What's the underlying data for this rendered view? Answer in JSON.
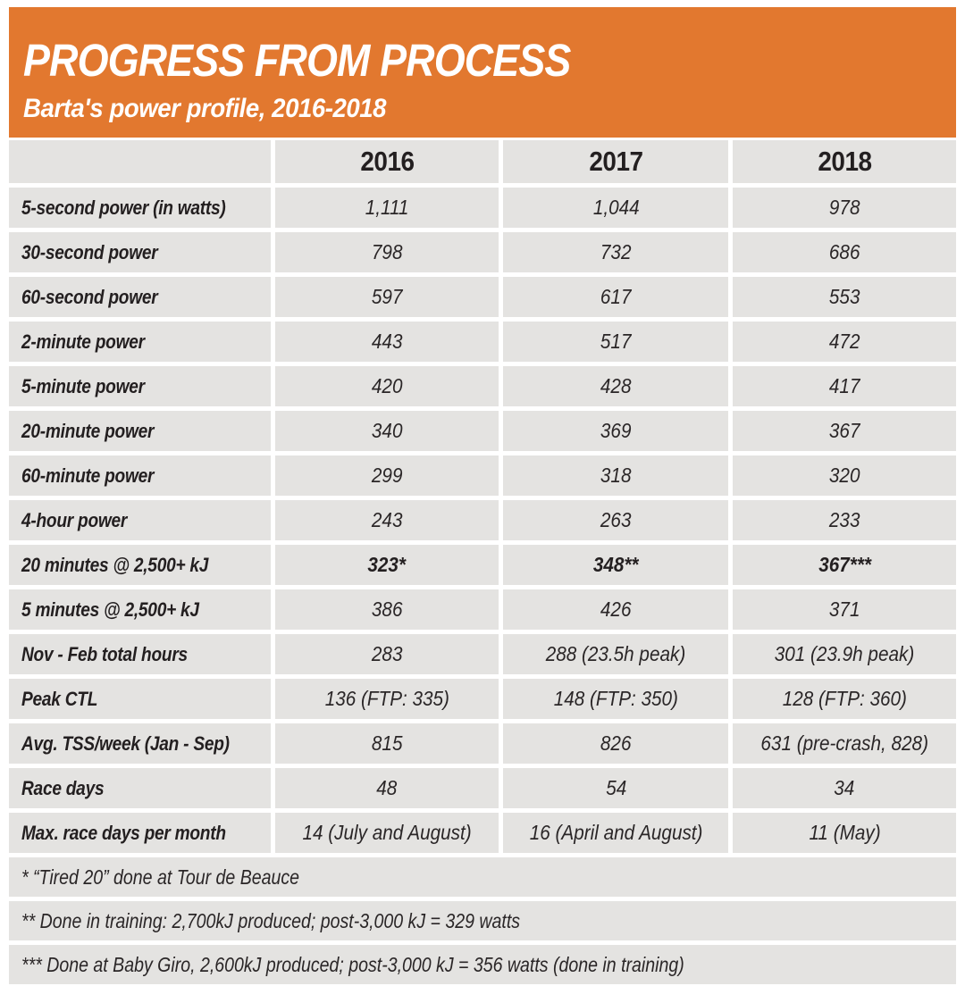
{
  "colors": {
    "accent_orange": "#E2782F",
    "row_gray": "#E4E3E1",
    "text_dark": "#231F20",
    "gap_white": "#FFFFFF"
  },
  "header": {
    "title": "PROGRESS FROM PROCESS",
    "subtitle": "Barta's power profile, 2016-2018"
  },
  "chart_data": {
    "type": "table",
    "title": "PROGRESS FROM PROCESS",
    "subtitle": "Barta's power profile, 2016-2018",
    "columns": [
      "",
      "2016",
      "2017",
      "2018"
    ],
    "rows": [
      {
        "label": "5-second power (in watts)",
        "values": [
          "1,111",
          "1,044",
          "978"
        ]
      },
      {
        "label": "30-second power",
        "values": [
          "798",
          "732",
          "686"
        ]
      },
      {
        "label": "60-second power",
        "values": [
          "597",
          "617",
          "553"
        ]
      },
      {
        "label": "2-minute power",
        "values": [
          "443",
          "517",
          "472"
        ]
      },
      {
        "label": "5-minute power",
        "values": [
          "420",
          "428",
          "417"
        ]
      },
      {
        "label": "20-minute power",
        "values": [
          "340",
          "369",
          "367"
        ]
      },
      {
        "label": "60-minute power",
        "values": [
          "299",
          "318",
          "320"
        ]
      },
      {
        "label": "4-hour power",
        "values": [
          "243",
          "263",
          "233"
        ]
      },
      {
        "label": "20 minutes @ 2,500+ kJ",
        "values": [
          "323*",
          "348**",
          "367***"
        ],
        "bold": true
      },
      {
        "label": "5 minutes @ 2,500+ kJ",
        "values": [
          "386",
          "426",
          "371"
        ]
      },
      {
        "label": "Nov - Feb total hours",
        "values": [
          "283",
          "288 (23.5h peak)",
          "301 (23.9h peak)"
        ]
      },
      {
        "label": "Peak CTL",
        "values": [
          "136 (FTP: 335)",
          "148 (FTP: 350)",
          "128 (FTP: 360)"
        ]
      },
      {
        "label": "Avg. TSS/week (Jan - Sep)",
        "values": [
          "815",
          "826",
          "631 (pre-crash, 828)"
        ]
      },
      {
        "label": "Race days",
        "values": [
          "48",
          "54",
          "34"
        ]
      },
      {
        "label": "Max. race days per month",
        "values": [
          "14 (July and August)",
          "16 (April and August)",
          "11 (May)"
        ]
      }
    ],
    "footnotes": [
      "* “Tired 20” done at Tour de Beauce",
      "** Done in training: 2,700kJ produced; post-3,000 kJ = 329 watts",
      "*** Done at Baby Giro, 2,600kJ produced; post-3,000 kJ = 356 watts (done in training)"
    ]
  }
}
